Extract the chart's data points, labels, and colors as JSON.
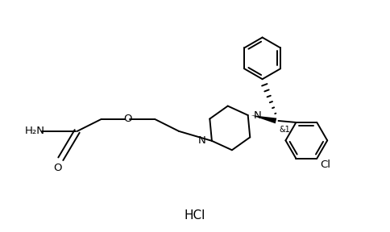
{
  "bg": "#ffffff",
  "lc": "#000000",
  "lw": 1.4,
  "fs": 9.5,
  "fig_w": 4.85,
  "fig_h": 2.88,
  "dpi": 100,
  "xlim": [
    0,
    9.7
  ],
  "ylim": [
    0,
    5.76
  ],
  "hcl_text": "HCl",
  "hcl_x": 4.2,
  "hcl_y": 0.55,
  "hcl_fs": 11
}
